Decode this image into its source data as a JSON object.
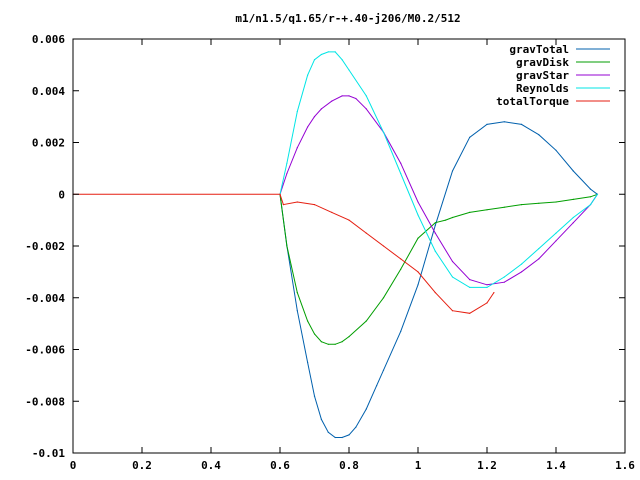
{
  "chart_data": {
    "type": "line",
    "title": "m1/n1.5/q1.65/r-+.40-j206/M0.2/512",
    "xlabel": "",
    "ylabel": "",
    "xlim": [
      0,
      1.6
    ],
    "ylim": [
      -0.01,
      0.006
    ],
    "x_ticks": [
      0,
      0.2,
      0.4,
      0.6,
      0.8,
      1,
      1.2,
      1.4,
      1.6
    ],
    "x_tick_labels": [
      "0",
      "0.2",
      "0.4",
      "0.6",
      "0.8",
      "1",
      "1.2",
      "1.4",
      "1.6"
    ],
    "y_ticks": [
      -0.01,
      -0.008,
      -0.006,
      -0.004,
      -0.002,
      0,
      0.002,
      0.004,
      0.006
    ],
    "y_tick_labels": [
      "-0.01",
      "-0.008",
      "-0.006",
      "-0.004",
      "-0.002",
      "0",
      "0.002",
      "0.004",
      "0.006"
    ],
    "grid": false,
    "legend_position": "top-right",
    "series": [
      {
        "name": "gravTotal",
        "color": "#0060ad",
        "x": [
          0.6,
          0.62,
          0.65,
          0.68,
          0.7,
          0.72,
          0.74,
          0.76,
          0.78,
          0.8,
          0.82,
          0.85,
          0.88,
          0.9,
          0.95,
          1.0,
          1.05,
          1.1,
          1.15,
          1.2,
          1.25,
          1.3,
          1.35,
          1.4,
          1.45,
          1.5,
          1.52
        ],
        "y": [
          0.0,
          -0.002,
          -0.0045,
          -0.0065,
          -0.0078,
          -0.0087,
          -0.0092,
          -0.0094,
          -0.0094,
          -0.0093,
          -0.009,
          -0.0083,
          -0.0074,
          -0.0068,
          -0.0053,
          -0.0035,
          -0.0012,
          0.0009,
          0.0022,
          0.0027,
          0.0028,
          0.0027,
          0.0023,
          0.0017,
          0.0009,
          0.0002,
          0.0
        ]
      },
      {
        "name": "gravDisk",
        "color": "#009e00",
        "x": [
          0.6,
          0.62,
          0.65,
          0.68,
          0.7,
          0.72,
          0.74,
          0.76,
          0.78,
          0.8,
          0.85,
          0.9,
          0.95,
          1.0,
          1.05,
          1.08,
          1.1,
          1.15,
          1.2,
          1.25,
          1.3,
          1.35,
          1.4,
          1.45,
          1.5,
          1.52
        ],
        "y": [
          0.0,
          -0.002,
          -0.0038,
          -0.0049,
          -0.0054,
          -0.0057,
          -0.0058,
          -0.0058,
          -0.0057,
          -0.0055,
          -0.0049,
          -0.004,
          -0.0029,
          -0.0017,
          -0.0011,
          -0.001,
          -0.0009,
          -0.0007,
          -0.0006,
          -0.0005,
          -0.0004,
          -0.00035,
          -0.0003,
          -0.0002,
          -0.0001,
          0.0
        ]
      },
      {
        "name": "gravStar",
        "color": "#9400d3",
        "x": [
          0.6,
          0.62,
          0.65,
          0.68,
          0.7,
          0.72,
          0.75,
          0.78,
          0.8,
          0.82,
          0.85,
          0.9,
          0.95,
          1.0,
          1.05,
          1.1,
          1.15,
          1.2,
          1.25,
          1.3,
          1.35,
          1.4,
          1.45,
          1.5,
          1.52
        ],
        "y": [
          0.0,
          0.0008,
          0.0018,
          0.0026,
          0.003,
          0.0033,
          0.0036,
          0.0038,
          0.0038,
          0.0037,
          0.0033,
          0.0024,
          0.0012,
          -0.0003,
          -0.0015,
          -0.0026,
          -0.0033,
          -0.0035,
          -0.0034,
          -0.003,
          -0.0025,
          -0.0018,
          -0.0011,
          -0.0004,
          0.0
        ]
      },
      {
        "name": "Reynolds",
        "color": "#00e5e5",
        "x": [
          0.6,
          0.62,
          0.65,
          0.68,
          0.7,
          0.72,
          0.74,
          0.76,
          0.78,
          0.8,
          0.85,
          0.9,
          0.95,
          1.0,
          1.05,
          1.1,
          1.15,
          1.2,
          1.25,
          1.3,
          1.35,
          1.4,
          1.45,
          1.5,
          1.52
        ],
        "y": [
          0.0,
          0.0012,
          0.0032,
          0.0046,
          0.0052,
          0.0054,
          0.0055,
          0.0055,
          0.0052,
          0.0048,
          0.0038,
          0.0024,
          0.0008,
          -0.0008,
          -0.0022,
          -0.0032,
          -0.0036,
          -0.0036,
          -0.0032,
          -0.0027,
          -0.0021,
          -0.0015,
          -0.0009,
          -0.0004,
          0.0
        ]
      },
      {
        "name": "totalTorque",
        "color": "#e51e10",
        "x": [
          0.0,
          0.6,
          0.61,
          0.65,
          0.7,
          0.75,
          0.8,
          0.85,
          0.9,
          0.95,
          1.0,
          1.05,
          1.1,
          1.15,
          1.2,
          1.22
        ],
        "y": [
          0.0,
          0.0,
          -0.0004,
          -0.0003,
          -0.0004,
          -0.0007,
          -0.001,
          -0.0015,
          -0.002,
          -0.0025,
          -0.003,
          -0.0038,
          -0.0045,
          -0.0046,
          -0.0042,
          -0.0038
        ]
      }
    ]
  }
}
